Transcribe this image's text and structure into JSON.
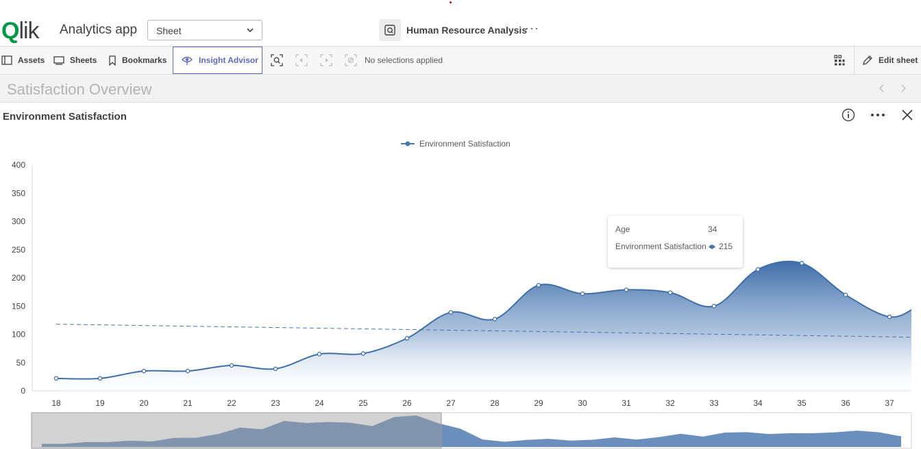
{
  "header": {
    "logo_q": "Q",
    "logo_rest": "lik",
    "app_name": "Analytics app",
    "sheet_select_value": "Sheet",
    "app_title": "Human Resource Analysis",
    "more": "···"
  },
  "toolbar": {
    "assets": "Assets",
    "sheets": "Sheets",
    "bookmarks": "Bookmarks",
    "insight_advisor": "Insight Advisor",
    "no_selections": "No selections applied",
    "edit_sheet": "Edit sheet"
  },
  "sheet": {
    "title": "Satisfaction Overview"
  },
  "chart_object": {
    "title": "Environment Satisfaction"
  },
  "tooltip": {
    "dim_label": "Age",
    "dim_value": "34",
    "measure_label": "Environment Satisfaction",
    "measure_value": "215"
  },
  "colors": {
    "series": "#4a76a8",
    "accent": "#5c6bc0",
    "qlik_green": "#009845"
  },
  "chart_data": {
    "type": "area",
    "legend": [
      "Environment Satisfaction"
    ],
    "legend_position": "top",
    "x": [
      "18",
      "19",
      "20",
      "21",
      "22",
      "23",
      "24",
      "25",
      "26",
      "27",
      "28",
      "29",
      "30",
      "31",
      "32",
      "33",
      "34",
      "35",
      "36",
      "37"
    ],
    "series": [
      {
        "name": "Environment Satisfaction",
        "values": [
          22,
          22,
          35,
          35,
          45,
          39,
          65,
          66,
          93,
          139,
          127,
          187,
          172,
          179,
          174,
          150,
          215,
          226,
          170,
          131
        ]
      }
    ],
    "trend_line": {
      "start": 118,
      "end": 95
    },
    "y_ticks": [
      "0",
      "50",
      "100",
      "150",
      "200",
      "250",
      "300",
      "350",
      "400"
    ],
    "ylim": [
      0,
      400
    ],
    "grid": false,
    "mini_chart_selection": {
      "from": 0,
      "to": 0.5
    }
  }
}
